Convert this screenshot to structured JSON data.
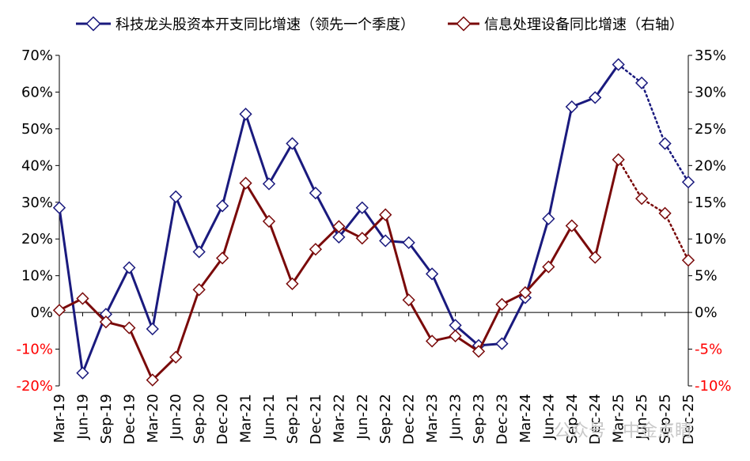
{
  "chart_data": {
    "type": "line",
    "categories": [
      "Mar-19",
      "Jun-19",
      "Sep-19",
      "Dec-19",
      "Mar-20",
      "Jun-20",
      "Sep-20",
      "Dec-20",
      "Mar-21",
      "Jun-21",
      "Sep-21",
      "Dec-21",
      "Mar-22",
      "Jun-22",
      "Sep-22",
      "Dec-22",
      "Mar-23",
      "Jun-23",
      "Sep-23",
      "Dec-23",
      "Mar-24",
      "Jun-24",
      "Sep-24",
      "Dec-24",
      "Mar-25",
      "Jun-25",
      "Sep-25",
      "Dec-25"
    ],
    "series": [
      {
        "name": "科技龙头股资本开支同比增速（领先一个季度）",
        "axis": "left",
        "color": "#1a1a7e",
        "values": [
          28.5,
          -16.5,
          -0.5,
          12.2,
          -4.5,
          31.5,
          16.5,
          29.0,
          54.0,
          35.0,
          46.0,
          32.5,
          20.5,
          28.5,
          19.5,
          19.0,
          10.5,
          -3.5,
          -9.0,
          -8.5,
          4.0,
          25.5,
          56.0,
          58.5,
          67.5,
          62.5,
          46.0,
          35.5
        ],
        "forecast_start_index": 24
      },
      {
        "name": "信息处理设备同比增速（右轴）",
        "axis": "right",
        "color": "#7a0a0a",
        "values": [
          0.3,
          1.9,
          -1.3,
          -2.1,
          -9.2,
          -6.1,
          3.1,
          7.4,
          17.6,
          12.4,
          3.9,
          8.6,
          11.7,
          10.1,
          13.3,
          1.7,
          -3.9,
          -3.2,
          -5.3,
          1.1,
          2.7,
          6.2,
          11.8,
          7.5,
          20.8,
          15.5,
          13.5,
          7.1
        ],
        "forecast_start_index": 24
      }
    ],
    "y_left": {
      "min": -20,
      "max": 70,
      "step": 10,
      "ticks": [
        "70%",
        "60%",
        "50%",
        "40%",
        "30%",
        "20%",
        "10%",
        "0%",
        "-10%",
        "-20%"
      ]
    },
    "y_right": {
      "min": -10,
      "max": 35,
      "step": 5,
      "ticks": [
        "35%",
        "30%",
        "25%",
        "20%",
        "15%",
        "10%",
        "5%",
        "0%",
        "-5%",
        "-10%"
      ]
    },
    "negative_tick_color": "#ff0000",
    "grid": false,
    "legend_position": "top"
  },
  "watermark": "公众号 · 中金点睛"
}
